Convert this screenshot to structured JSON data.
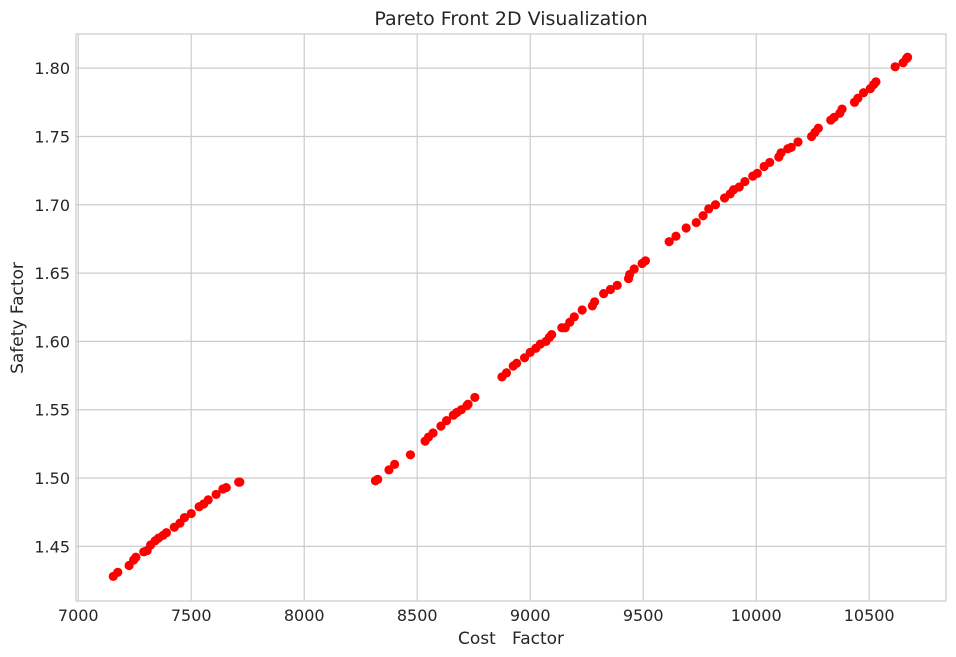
{
  "chart_data": {
    "type": "scatter",
    "title": "Pareto Front 2D Visualization",
    "xlabel": "Cost   Factor",
    "ylabel": "Safety Factor",
    "xlim": [
      6990,
      10840
    ],
    "ylim": [
      1.41,
      1.825
    ],
    "xticks": [
      7000,
      7500,
      8000,
      8500,
      9000,
      9500,
      10000,
      10500
    ],
    "xtick_labels": [
      "7000",
      "7500",
      "8000",
      "8500",
      "9000",
      "9500",
      "10000",
      "10500"
    ],
    "yticks": [
      1.45,
      1.5,
      1.55,
      1.6,
      1.65,
      1.7,
      1.75,
      1.8
    ],
    "ytick_labels": [
      "1.45",
      "1.50",
      "1.55",
      "1.60",
      "1.65",
      "1.70",
      "1.75",
      "1.80"
    ],
    "grid": true,
    "marker_color": "#ff0000",
    "points": [
      [
        7155,
        1.428
      ],
      [
        7175,
        1.431
      ],
      [
        7225,
        1.436
      ],
      [
        7245,
        1.44
      ],
      [
        7255,
        1.442
      ],
      [
        7290,
        1.446
      ],
      [
        7305,
        1.447
      ],
      [
        7320,
        1.451
      ],
      [
        7340,
        1.454
      ],
      [
        7355,
        1.456
      ],
      [
        7375,
        1.458
      ],
      [
        7390,
        1.46
      ],
      [
        7425,
        1.464
      ],
      [
        7450,
        1.467
      ],
      [
        7470,
        1.471
      ],
      [
        7500,
        1.474
      ],
      [
        7535,
        1.479
      ],
      [
        7555,
        1.481
      ],
      [
        7575,
        1.484
      ],
      [
        7610,
        1.488
      ],
      [
        7640,
        1.492
      ],
      [
        7655,
        1.493
      ],
      [
        7710,
        1.497
      ],
      [
        7715,
        1.497
      ],
      [
        8315,
        1.498
      ],
      [
        8325,
        1.499
      ],
      [
        8375,
        1.506
      ],
      [
        8400,
        1.51
      ],
      [
        8470,
        1.517
      ],
      [
        8535,
        1.527
      ],
      [
        8550,
        1.53
      ],
      [
        8570,
        1.533
      ],
      [
        8605,
        1.538
      ],
      [
        8630,
        1.542
      ],
      [
        8660,
        1.546
      ],
      [
        8675,
        1.548
      ],
      [
        8695,
        1.55
      ],
      [
        8720,
        1.553
      ],
      [
        8725,
        1.554
      ],
      [
        8755,
        1.559
      ],
      [
        8875,
        1.574
      ],
      [
        8895,
        1.577
      ],
      [
        8925,
        1.582
      ],
      [
        8940,
        1.584
      ],
      [
        8975,
        1.588
      ],
      [
        9000,
        1.592
      ],
      [
        9025,
        1.595
      ],
      [
        9045,
        1.598
      ],
      [
        9070,
        1.6
      ],
      [
        9085,
        1.603
      ],
      [
        9095,
        1.605
      ],
      [
        9140,
        1.61
      ],
      [
        9155,
        1.61
      ],
      [
        9175,
        1.614
      ],
      [
        9195,
        1.618
      ],
      [
        9230,
        1.623
      ],
      [
        9275,
        1.626
      ],
      [
        9285,
        1.629
      ],
      [
        9325,
        1.635
      ],
      [
        9355,
        1.638
      ],
      [
        9385,
        1.641
      ],
      [
        9435,
        1.646
      ],
      [
        9440,
        1.649
      ],
      [
        9460,
        1.653
      ],
      [
        9495,
        1.657
      ],
      [
        9510,
        1.659
      ],
      [
        9615,
        1.673
      ],
      [
        9645,
        1.677
      ],
      [
        9690,
        1.683
      ],
      [
        9735,
        1.687
      ],
      [
        9765,
        1.692
      ],
      [
        9790,
        1.697
      ],
      [
        9820,
        1.7
      ],
      [
        9860,
        1.705
      ],
      [
        9885,
        1.708
      ],
      [
        9900,
        1.711
      ],
      [
        9925,
        1.713
      ],
      [
        9950,
        1.717
      ],
      [
        9985,
        1.721
      ],
      [
        10005,
        1.723
      ],
      [
        10035,
        1.728
      ],
      [
        10060,
        1.731
      ],
      [
        10100,
        1.735
      ],
      [
        10110,
        1.738
      ],
      [
        10140,
        1.741
      ],
      [
        10155,
        1.742
      ],
      [
        10185,
        1.746
      ],
      [
        10245,
        1.75
      ],
      [
        10260,
        1.753
      ],
      [
        10275,
        1.756
      ],
      [
        10330,
        1.762
      ],
      [
        10345,
        1.764
      ],
      [
        10370,
        1.767
      ],
      [
        10380,
        1.77
      ],
      [
        10435,
        1.775
      ],
      [
        10450,
        1.778
      ],
      [
        10475,
        1.782
      ],
      [
        10505,
        1.785
      ],
      [
        10520,
        1.788
      ],
      [
        10530,
        1.79
      ],
      [
        10615,
        1.801
      ],
      [
        10650,
        1.804
      ],
      [
        10665,
        1.807
      ],
      [
        10670,
        1.808
      ]
    ]
  }
}
